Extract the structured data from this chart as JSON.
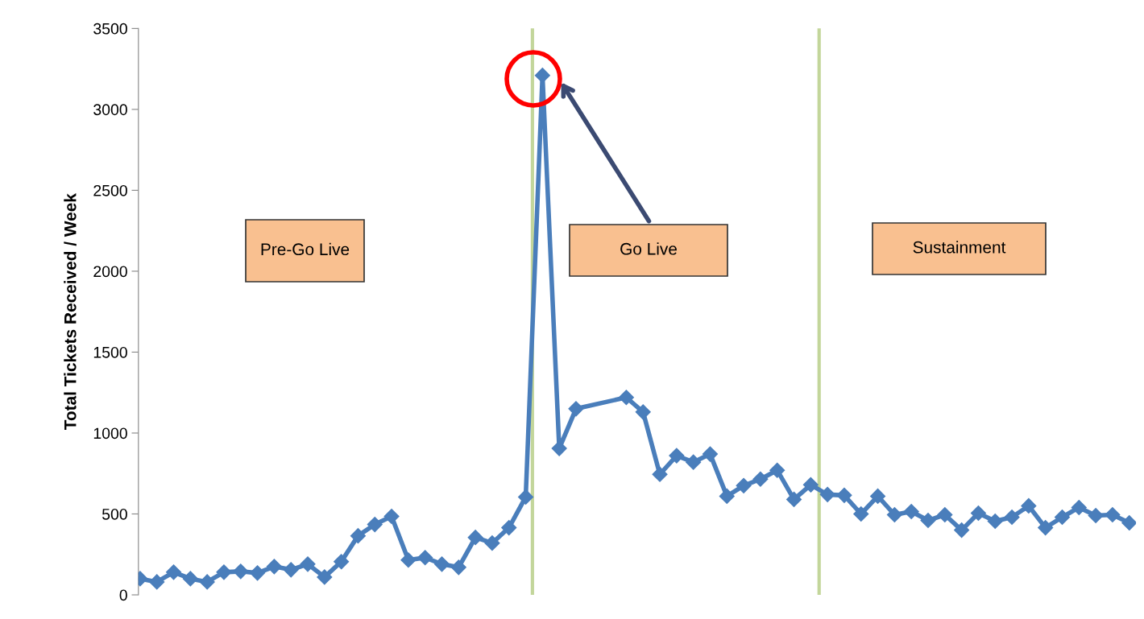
{
  "chart_data": {
    "type": "line",
    "ylabel": "Total Tickets Received / Week",
    "categories": [
      null,
      null,
      null,
      null,
      null,
      null,
      null,
      null,
      null,
      null,
      null,
      null,
      null,
      null,
      null,
      null,
      null,
      null,
      null,
      null,
      null,
      null,
      null,
      null,
      null,
      null,
      null,
      null,
      null,
      null,
      null,
      null,
      null,
      null,
      null,
      null,
      null,
      null,
      null,
      null,
      null,
      null,
      null,
      null,
      null,
      null,
      null,
      null,
      null,
      null,
      null,
      null,
      null,
      null,
      null,
      null,
      null,
      null,
      null,
      null
    ],
    "series": [
      {
        "color": "#4a7ebb",
        "values": [
          100,
          80,
          140,
          100,
          80,
          140,
          145,
          135,
          175,
          155,
          190,
          110,
          205,
          365,
          435,
          485,
          215,
          230,
          190,
          170,
          355,
          320,
          415,
          605,
          3210,
          905,
          1150,
          null,
          null,
          1220,
          1130,
          745,
          860,
          820,
          870,
          610,
          675,
          715,
          770,
          590,
          680,
          620,
          615,
          500,
          610,
          495,
          515,
          460,
          495,
          400,
          505,
          455,
          480,
          550,
          415,
          480,
          540,
          490,
          495,
          445
        ]
      }
    ],
    "marker": "diamond",
    "line_style": "solid",
    "grid": false,
    "legend": false,
    "tick_labels": "y",
    "ylim": [
      0,
      3500
    ],
    "yticks": [
      0,
      500,
      1000,
      1500,
      2000,
      2500,
      3000,
      3500
    ],
    "annotations": [
      "Pre-Go Live",
      "Go Live",
      "Sustainment"
    ]
  }
}
